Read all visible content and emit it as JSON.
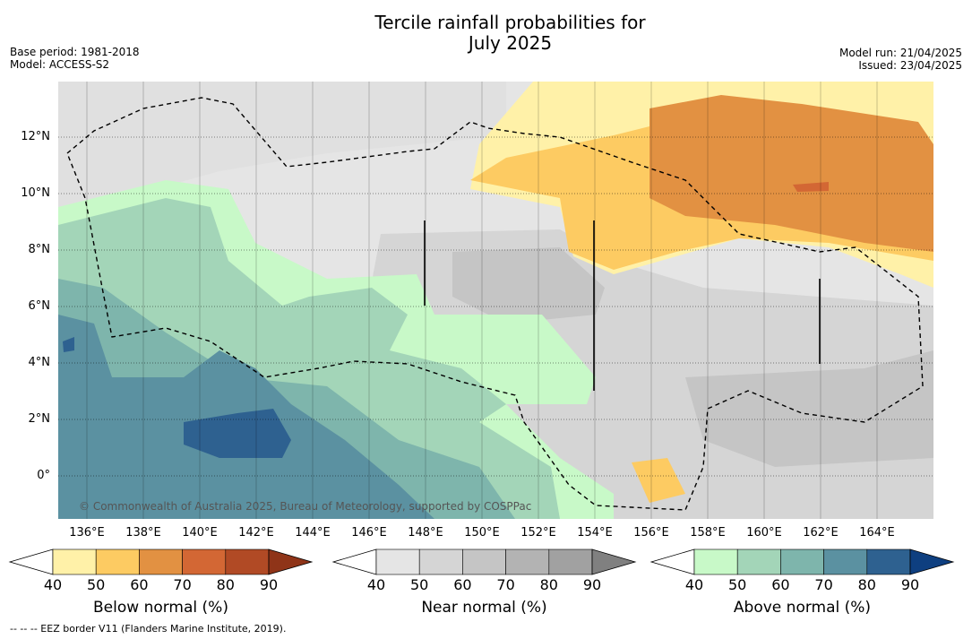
{
  "title_line1": "Tercile rainfall probabilities for",
  "title_line2": "July 2025",
  "base_period": "Base period: 1981-2018",
  "model": "Model: ACCESS-S2",
  "model_run": "Model run: 21/04/2025",
  "issued": "Issued: 23/04/2025",
  "lat_ticks": [
    "12°N",
    "10°N",
    "8°N",
    "6°N",
    "4°N",
    "2°N",
    "0°"
  ],
  "lon_ticks": [
    "136°E",
    "138°E",
    "140°E",
    "142°E",
    "144°E",
    "146°E",
    "148°E",
    "150°E",
    "152°E",
    "154°E",
    "156°E",
    "158°E",
    "160°E",
    "162°E",
    "164°E"
  ],
  "copyright": "© Commonwealth of Australia 2025, Bureau of Meteorology, supported by COSPPac",
  "legends": [
    {
      "label": "Below normal (%)",
      "ticks": [
        "40",
        "50",
        "60",
        "70",
        "80",
        "90"
      ],
      "colors": [
        "#fff1a8",
        "#fdcb62",
        "#e29142",
        "#d36734",
        "#b14a25",
        "#8f3418"
      ]
    },
    {
      "label": "Near normal (%)",
      "ticks": [
        "40",
        "50",
        "60",
        "70",
        "80",
        "90"
      ],
      "colors": [
        "#e5e5e5",
        "#d5d5d5",
        "#c5c5c5",
        "#b3b3b3",
        "#a1a1a1",
        "#808080"
      ]
    },
    {
      "label": "Above normal (%)",
      "ticks": [
        "40",
        "50",
        "60",
        "70",
        "80",
        "90"
      ],
      "colors": [
        "#c8f9c8",
        "#a3d5b8",
        "#7eb5ac",
        "#5b91a1",
        "#2e6190",
        "#0e3f80"
      ]
    }
  ],
  "footnote": "--  --  -- EEZ border V11 (Flanders Marine Institute, 2019)."
}
